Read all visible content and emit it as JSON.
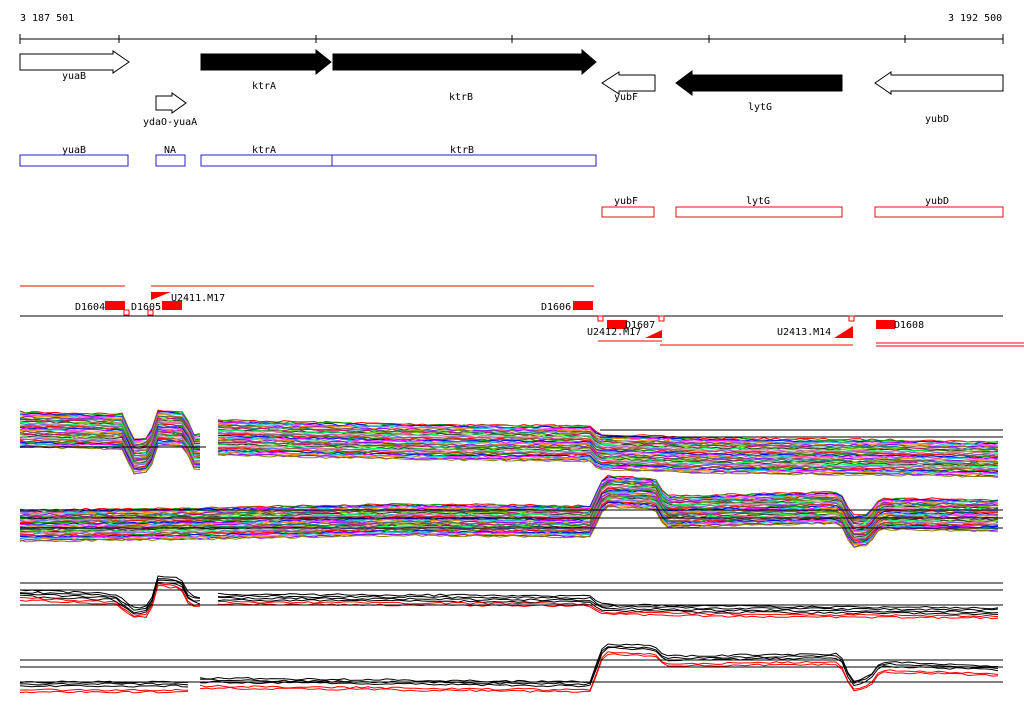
{
  "coordinates": {
    "start": "3 187 501",
    "end": "3 192 500"
  },
  "genes_top": [
    {
      "name": "yuaB",
      "strand": "+",
      "fill": "#ffffff"
    },
    {
      "name": "ydaO-yuaA",
      "strand": "+",
      "fill": "#ffffff"
    },
    {
      "name": "ktrA",
      "strand": "+",
      "fill": "#000000"
    },
    {
      "name": "ktrB",
      "strand": "+",
      "fill": "#000000"
    },
    {
      "name": "yubF",
      "strand": "-",
      "fill": "#ffffff"
    },
    {
      "name": "lytG",
      "strand": "-",
      "fill": "#000000"
    },
    {
      "name": "yubD",
      "strand": "-",
      "fill": "#ffffff"
    }
  ],
  "plus_strand_boxes": [
    "yuaB",
    "NA",
    "ktrA",
    "ktrB"
  ],
  "minus_strand_boxes": [
    "yubF",
    "lytG",
    "yubD"
  ],
  "segment_labels": [
    "D1604",
    "D1605",
    "U2411.M17",
    "D1606",
    "D1607",
    "U2412.M17",
    "U2413.M14",
    "D1608"
  ],
  "colors": {
    "plus_box": "#2222bb",
    "minus_box": "#dd1111",
    "segment": "#ff0000",
    "axis": "#000000"
  }
}
